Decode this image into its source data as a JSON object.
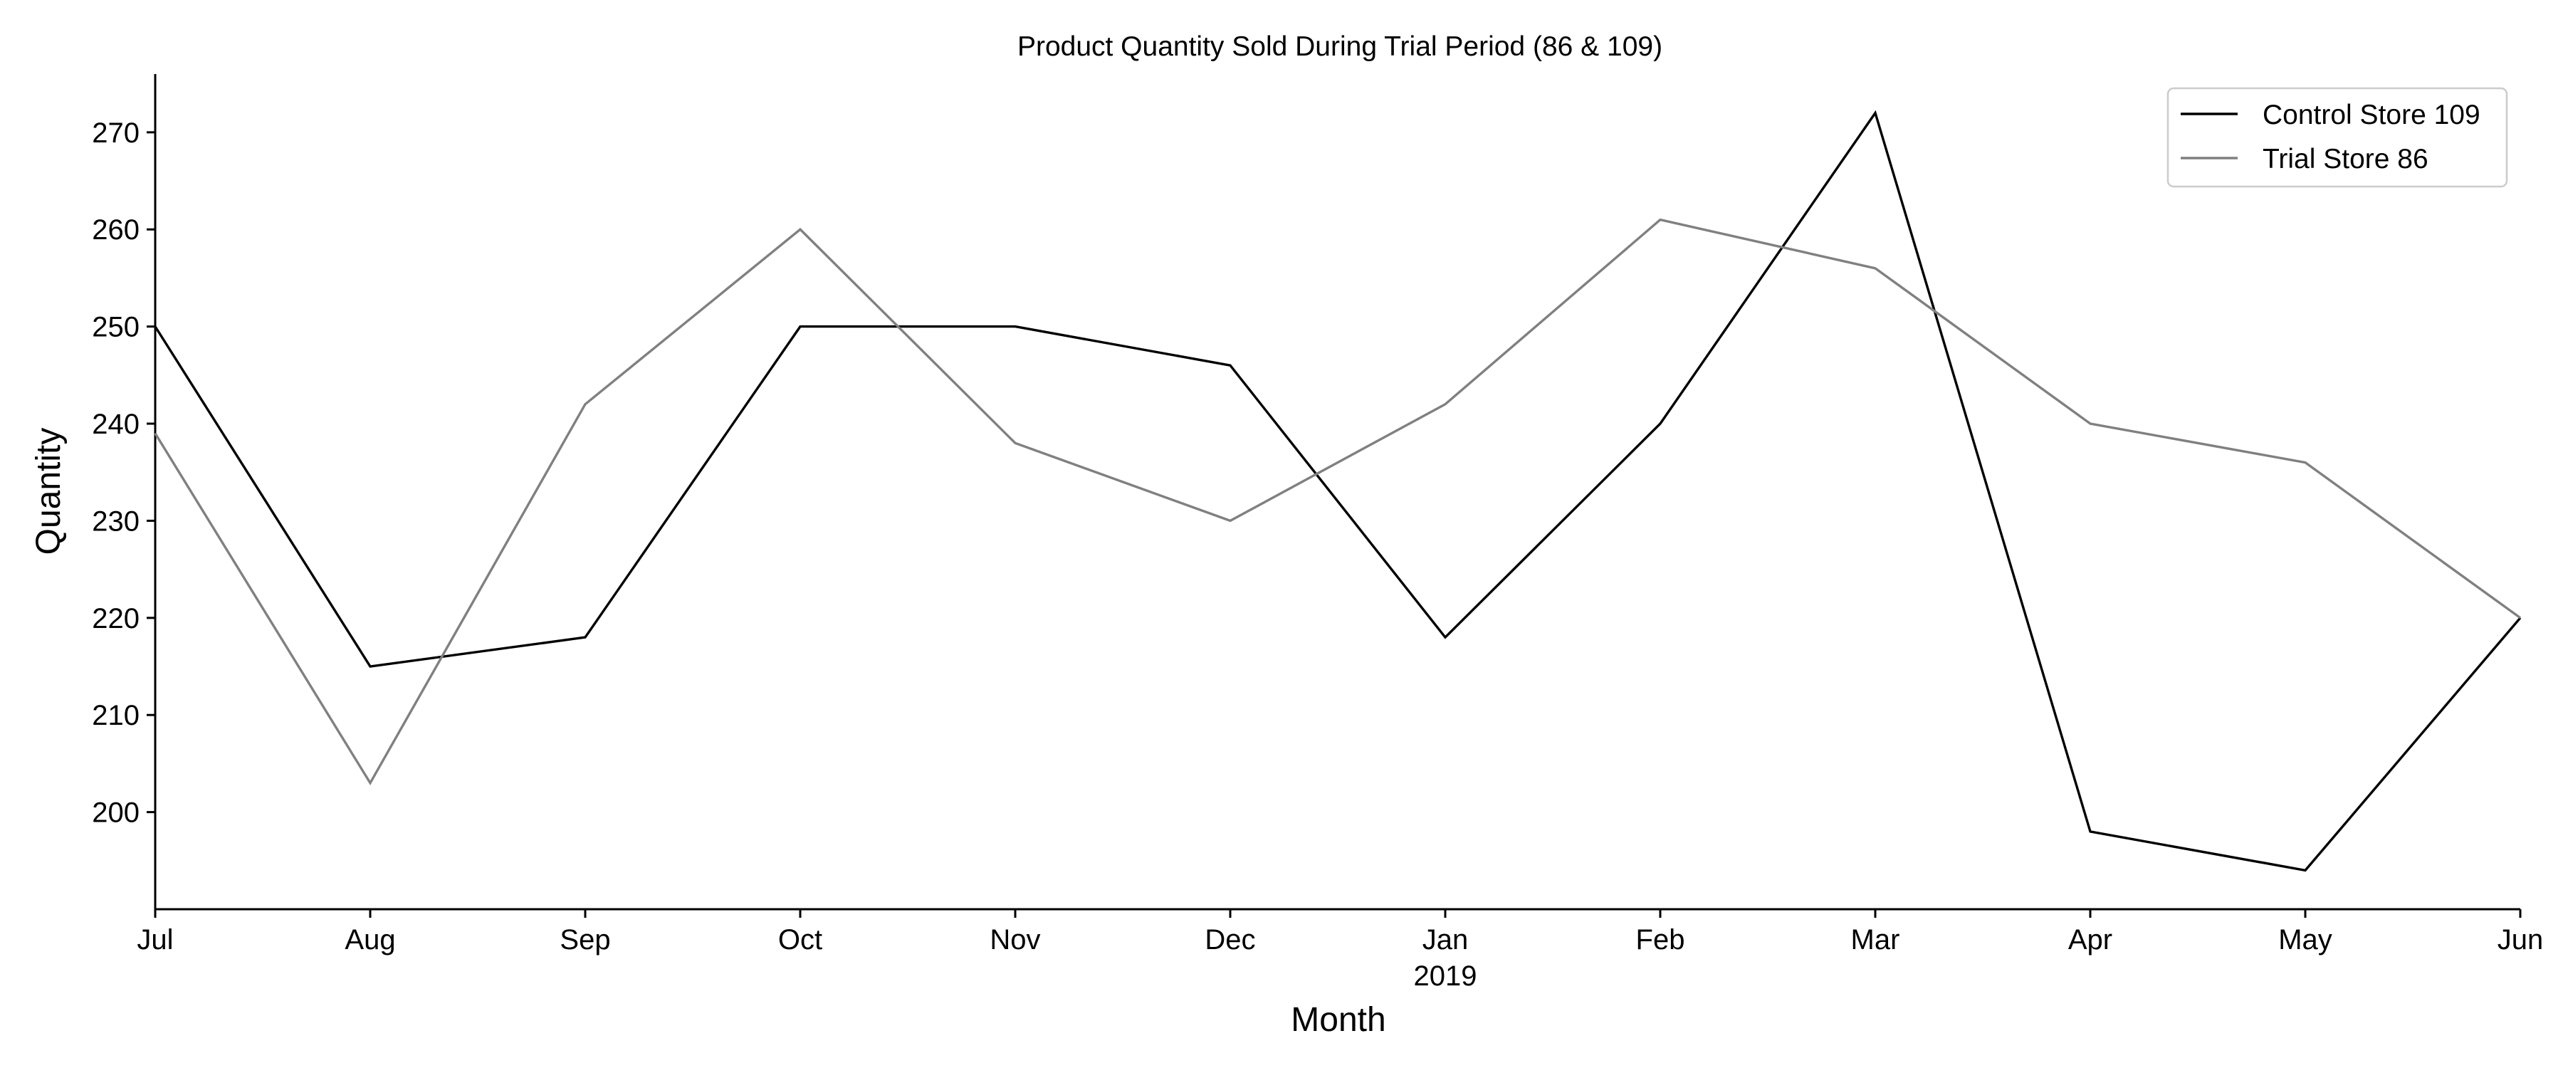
{
  "chart_data": {
    "type": "line",
    "title": "Product Quantity Sold During Trial Period (86 & 109)",
    "xlabel": "Month",
    "ylabel": "Quantity",
    "categories": [
      "Jul",
      "Aug",
      "Sep",
      "Oct",
      "Nov",
      "Dec",
      "Jan",
      "Feb",
      "Mar",
      "Apr",
      "May",
      "Jun"
    ],
    "year_label": "2019",
    "year_label_category": "Jan",
    "yticks": [
      200,
      210,
      220,
      230,
      240,
      250,
      260,
      270
    ],
    "ylim": [
      190,
      276
    ],
    "grid": false,
    "legend_position": "top-right",
    "series": [
      {
        "name": "Control Store 109",
        "color": "#000000",
        "values": [
          250,
          215,
          218,
          250,
          250,
          246,
          218,
          240,
          272,
          198,
          194,
          220
        ]
      },
      {
        "name": "Trial Store 86",
        "color": "#808080",
        "values": [
          239,
          203,
          242,
          260,
          238,
          230,
          242,
          261,
          256,
          240,
          236,
          220
        ]
      }
    ]
  }
}
